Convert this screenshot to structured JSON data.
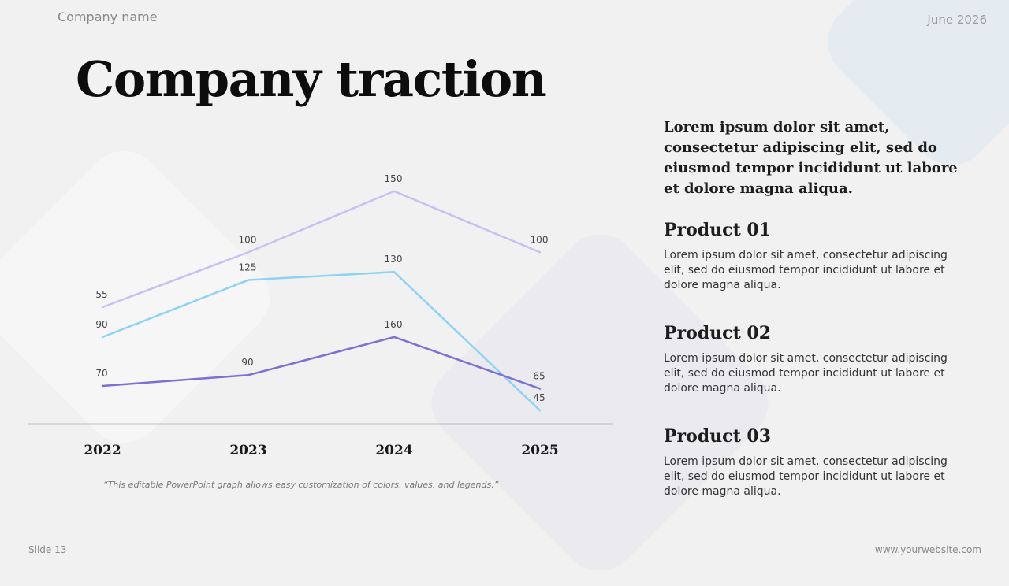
{
  "header": {
    "company": "Company name",
    "date": "June 2026"
  },
  "title": "Company traction",
  "chart_data": {
    "type": "line",
    "categories": [
      "2022",
      "2023",
      "2024",
      "2025"
    ],
    "series": [
      {
        "values": [
          55,
          100,
          150,
          100
        ],
        "color": "#c9c0f2"
      },
      {
        "values": [
          90,
          125,
          130,
          45
        ],
        "color": "#8dd3f5"
      },
      {
        "values": [
          70,
          90,
          160,
          65
        ],
        "color": "#7b70d4"
      }
    ],
    "data_labels": true,
    "axis_line": true
  },
  "caption": "“This editable PowerPoint graph allows easy customization of colors, values, and legends.”",
  "side": {
    "lead": "Lorem ipsum dolor sit amet, consectetur adipiscing elit, sed do eiusmod tempor incididunt ut labore et dolore magna aliqua.",
    "products": [
      {
        "title": "Product 01",
        "text": "Lorem ipsum dolor sit amet, consectetur adipiscing elit, sed do eiusmod tempor incididunt ut labore et dolore magna aliqua."
      },
      {
        "title": "Product 02",
        "text": "Lorem ipsum dolor sit amet, consectetur adipiscing elit, sed do eiusmod tempor incididunt ut labore et dolore magna aliqua."
      },
      {
        "title": "Product 03",
        "text": "Lorem ipsum dolor sit amet, consectetur adipiscing elit, sed do eiusmod tempor incididunt ut labore et dolore magna aliqua."
      }
    ]
  },
  "footer": {
    "slide": "Slide 13",
    "website": "www.yourwebsite.com"
  }
}
